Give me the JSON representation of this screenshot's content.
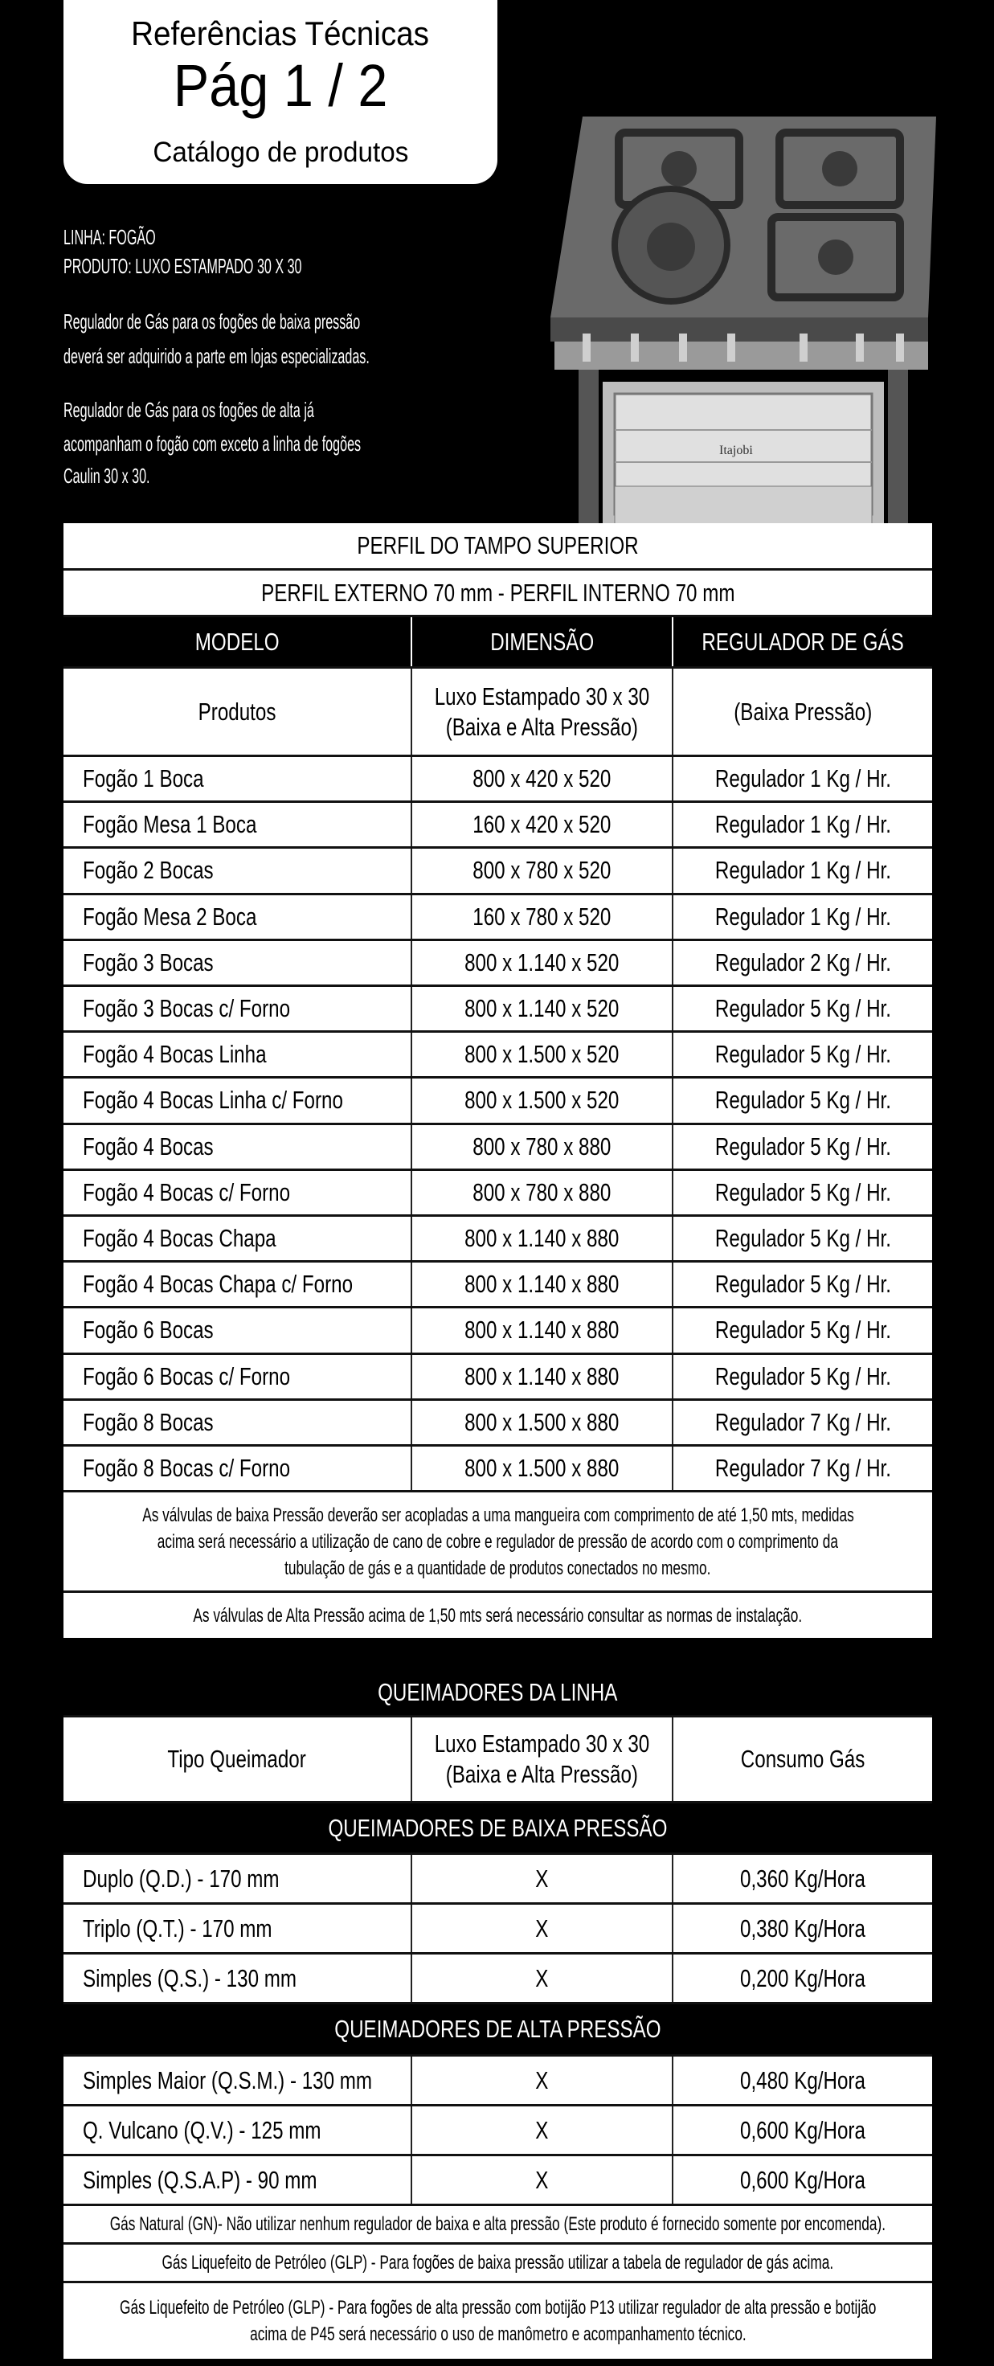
{
  "header": {
    "title": "Referências Técnicas",
    "page": "Pág 1 / 2",
    "subtitle": "Catálogo de produtos"
  },
  "intro": {
    "linha": "LINHA: FOGÃO",
    "produto": "PRODUTO: LUXO ESTAMPADO 30 X 30",
    "para1": [
      "Regulador de Gás para os fogões de baixa pressão",
      "deverá ser adquirido a parte em lojas especializadas."
    ],
    "para2": [
      "Regulador de Gás para os fogões de alta já",
      "acompanham o fogão com exceto a linha de fogões",
      "Caulin 30 x 30."
    ]
  },
  "photo": {
    "brand": "Itajobi"
  },
  "table1": {
    "title": "PERFIL DO TAMPO SUPERIOR",
    "perfil": "PERFIL EXTERNO 70 mm - PERFIL INTERNO 70 mm",
    "headers": [
      "MODELO",
      "DIMENSÃO",
      "REGULADOR DE GÁS"
    ],
    "subheaders": [
      "Produtos",
      "Luxo Estampado 30 x 30",
      "(Baixa e Alta Pressão)",
      "(Baixa Pressão)"
    ],
    "rows": [
      [
        "Fogão 1 Boca",
        "800 x 420 x 520",
        "Regulador 1 Kg / Hr."
      ],
      [
        "Fogão Mesa 1 Boca",
        "160 x 420 x 520",
        "Regulador 1 Kg / Hr."
      ],
      [
        "Fogão 2 Bocas",
        "800 x 780 x 520",
        "Regulador 1 Kg / Hr."
      ],
      [
        "Fogão Mesa 2 Boca",
        "160 x 780 x 520",
        "Regulador 1 Kg / Hr."
      ],
      [
        "Fogão 3 Bocas",
        "800 x 1.140 x 520",
        "Regulador 2 Kg / Hr."
      ],
      [
        "Fogão 3 Bocas  c/ Forno",
        "800 x 1.140 x 520",
        "Regulador 5 Kg / Hr."
      ],
      [
        "Fogão 4 Bocas Linha",
        "800 x 1.500 x 520",
        "Regulador 5 Kg / Hr."
      ],
      [
        "Fogão 4 Bocas Linha  c/ Forno",
        "800 x 1.500 x 520",
        "Regulador 5 Kg / Hr."
      ],
      [
        "Fogão 4 Bocas",
        "800 x 780 x 880",
        "Regulador 5 Kg / Hr."
      ],
      [
        "Fogão 4 Bocas  c/ Forno",
        "800 x 780 x 880",
        "Regulador 5 Kg / Hr."
      ],
      [
        "Fogão 4 Bocas  Chapa",
        "800 x 1.140 x 880",
        "Regulador 5 Kg / Hr."
      ],
      [
        "Fogão 4 Bocas  Chapa  c/ Forno",
        "800 x 1.140 x 880",
        "Regulador 5 Kg / Hr."
      ],
      [
        "Fogão 6 Bocas",
        "800 x 1.140 x 880",
        "Regulador 5 Kg / Hr."
      ],
      [
        "Fogão 6 Bocas  c/ Forno",
        "800 x 1.140 x 880",
        "Regulador 5 Kg / Hr."
      ],
      [
        "Fogão 8 Bocas",
        "800 x 1.500 x 880",
        "Regulador 7 Kg / Hr."
      ],
      [
        "Fogão 8 Bocas  c/ Forno",
        "800 x 1.500 x 880",
        "Regulador 7 Kg / Hr."
      ]
    ],
    "note1": [
      "As válvulas de baixa Pressão deverão ser acopladas a uma mangueira com comprimento de até 1,50 mts, medidas",
      "acima será necessário a utilização de cano de cobre e regulador de pressão de acordo com o comprimento da",
      "tubulação de gás e a quantidade de produtos conectados no mesmo."
    ],
    "note2": "As válvulas de Alta Pressão acima de 1,50 mts será necessário consultar as normas de instalação."
  },
  "table2": {
    "title": "QUEIMADORES DA LINHA",
    "headers": [
      "Tipo Queimador",
      "Luxo Estampado 30 x 30",
      "(Baixa e Alta Pressão)",
      "Consumo Gás"
    ],
    "section_low": "QUEIMADORES DE BAIXA PRESSÃO",
    "rows_low": [
      [
        "Duplo (Q.D.)  - 170 mm",
        "X",
        "0,360 Kg/Hora"
      ],
      [
        "Triplo (Q.T.) - 170 mm",
        "X",
        "0,380 Kg/Hora"
      ],
      [
        "Simples (Q.S.) - 130 mm",
        "X",
        "0,200 Kg/Hora"
      ]
    ],
    "section_high": "QUEIMADORES DE ALTA PRESSÃO",
    "rows_high": [
      [
        "Simples Maior (Q.S.M.) - 130 mm",
        "X",
        "0,480 Kg/Hora"
      ],
      [
        "Q. Vulcano (Q.V.) - 125 mm",
        "X",
        "0,600 Kg/Hora"
      ],
      [
        "Simples (Q.S.A.P) - 90 mm",
        "X",
        "0,600 Kg/Hora"
      ]
    ],
    "note_gn": "Gás Natural (GN)- Não utilizar nenhum regulador de baixa e alta pressão  (Este produto é fornecido somente por encomenda).",
    "note_glp_low": "Gás Liquefeito de Petróleo (GLP) - Para fogões de baixa pressão utilizar a tabela de regulador de gás acima.",
    "note_glp_high": [
      "Gás Liquefeito de Petróleo (GLP) - Para fogões de alta pressão com botijão P13 utilizar regulador de alta pressão e botijão",
      "acima de P45 será necessário o uso de manômetro e acompanhamento técnico."
    ]
  }
}
